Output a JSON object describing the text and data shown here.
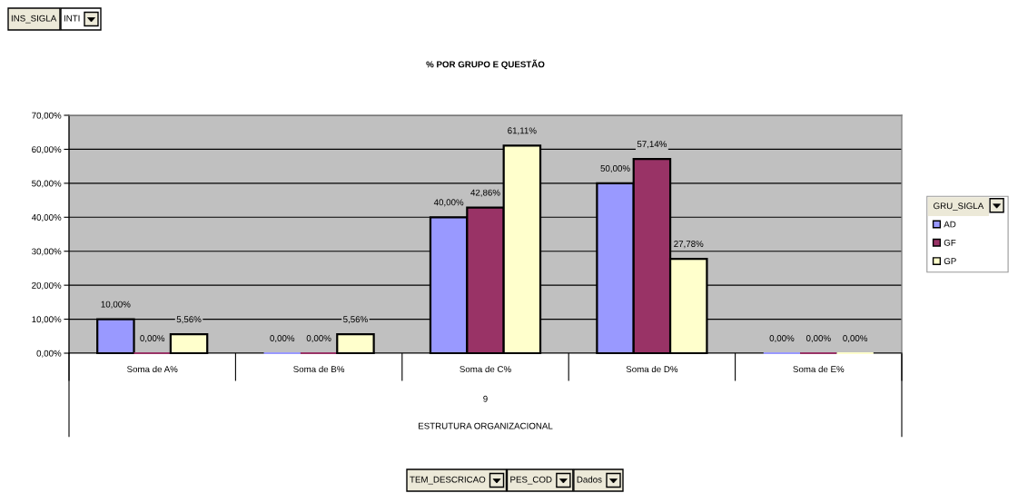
{
  "chart_data": {
    "type": "bar",
    "title": "% POR GRUPO E QUESTÃO",
    "legend_title": "GRU_SIGLA",
    "categories": [
      "Soma de A%",
      "Soma de B%",
      "Soma de C%",
      "Soma de D%",
      "Soma de E%"
    ],
    "series": [
      {
        "name": "AD",
        "color": "#9999ff",
        "values": [
          10,
          0,
          40,
          50,
          0
        ],
        "value_labels": [
          "10,00%",
          "0,00%",
          "40,00%",
          "50,00%",
          "0,00%"
        ]
      },
      {
        "name": "GF",
        "color": "#993366",
        "values": [
          0,
          0,
          42.86,
          57.14,
          0
        ],
        "value_labels": [
          "0,00%",
          "0,00%",
          "42,86%",
          "57,14%",
          "0,00%"
        ]
      },
      {
        "name": "GP",
        "color": "#ffffcc",
        "values": [
          5.56,
          5.56,
          61.11,
          27.78,
          0
        ],
        "value_labels": [
          "5,56%",
          "5,56%",
          "61,11%",
          "27,78%",
          "0,00%"
        ]
      }
    ],
    "ylim": [
      0,
      70
    ],
    "yticks": [
      {
        "value": 0,
        "label": "0,00%"
      },
      {
        "value": 10,
        "label": "10,00%"
      },
      {
        "value": 20,
        "label": "20,00%"
      },
      {
        "value": 30,
        "label": "30,00%"
      },
      {
        "value": 40,
        "label": "40,00%"
      },
      {
        "value": 50,
        "label": "50,00%"
      },
      {
        "value": 60,
        "label": "60,00%"
      },
      {
        "value": 70,
        "label": "70,00%"
      }
    ],
    "grid": "y",
    "legend": "right",
    "annotations": [
      "INS_SIGLA",
      "INTI",
      "9",
      "ESTRUTURA ORGANIZACIONAL",
      "TEM_DESCRICAO",
      "PES_COD",
      "Dados"
    ]
  }
}
